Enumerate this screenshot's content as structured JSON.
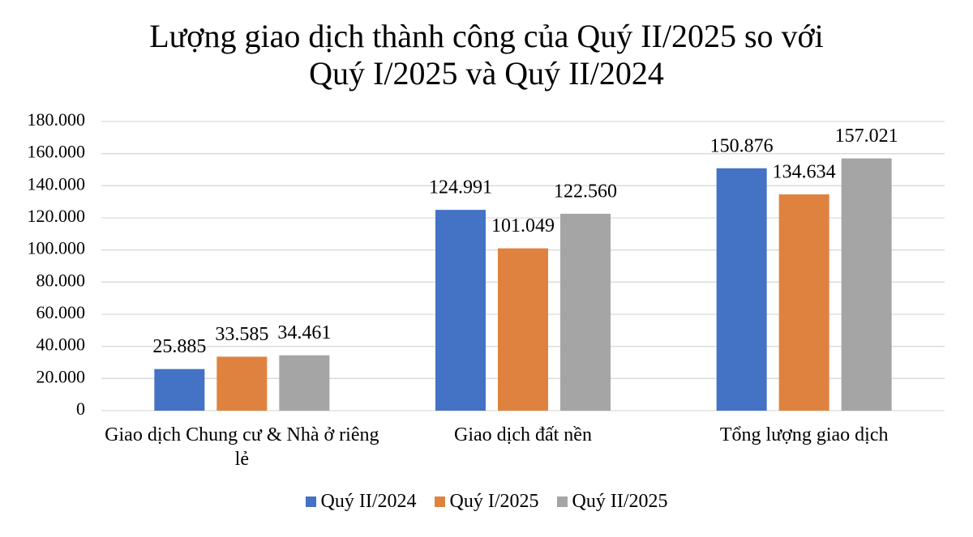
{
  "chart_data": {
    "type": "bar",
    "title": "Lượng giao dịch thành công của Quý II/2025 so với Quý I/2025 và Quý II/2024",
    "categories": [
      "Giao dịch Chung cư & Nhà ở riêng lẻ",
      "Giao dịch đất nền",
      "Tổng lượng giao dịch"
    ],
    "series": [
      {
        "name": "Quý II/2024",
        "color": "#4472c4",
        "values": [
          25885,
          124991,
          150876
        ],
        "value_labels": [
          "25.885",
          "124.991",
          "150.876"
        ]
      },
      {
        "name": "Quý I/2025",
        "color": "#e0823f",
        "values": [
          33585,
          101049,
          134634
        ],
        "value_labels": [
          "33.585",
          "101.049",
          "134.634"
        ]
      },
      {
        "name": "Quý II/2025",
        "color": "#a5a5a5",
        "values": [
          34461,
          122560,
          157021
        ],
        "value_labels": [
          "34.461",
          "122.560",
          "157.021"
        ]
      }
    ],
    "ylim": [
      0,
      180000
    ],
    "yticks": [
      0,
      {
        "value": 20000,
        "label": "20.000"
      },
      {
        "value": 40000,
        "label": "40.000"
      },
      {
        "value": 60000,
        "label": "60.000"
      },
      {
        "value": 80000,
        "label": "80.000"
      },
      {
        "value": 100000,
        "label": "100.000"
      },
      {
        "value": 120000,
        "label": "120.000"
      },
      {
        "value": 140000,
        "label": "140.000"
      },
      {
        "value": 160000,
        "label": "160.000"
      },
      {
        "value": 180000,
        "label": "180.000"
      }
    ],
    "grid": true,
    "legend": "bottom"
  }
}
